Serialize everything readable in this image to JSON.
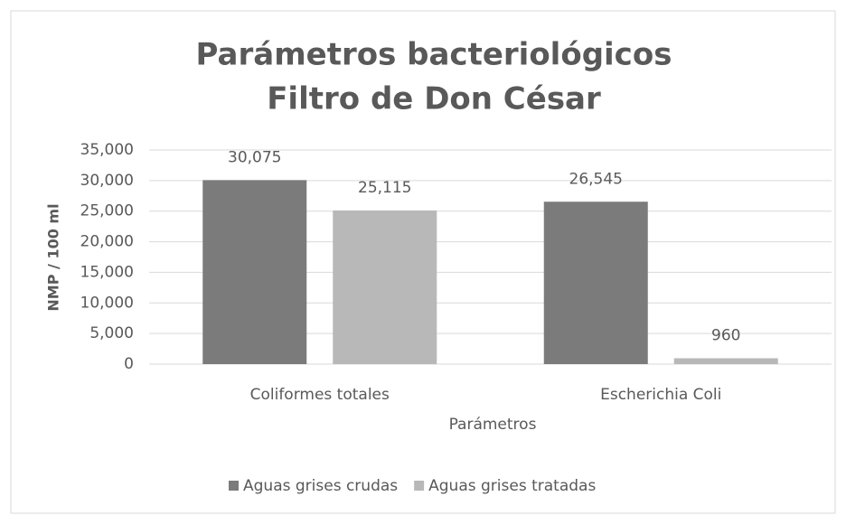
{
  "chart_data": {
    "type": "bar",
    "title": [
      "Parámetros bacteriológicos",
      "Filtro de Don César"
    ],
    "x_label": "Parámetros",
    "y_label": "NMP / 100 ml",
    "categories": [
      "Coliformes totales",
      "Escherichia Coli"
    ],
    "series": [
      {
        "name": "Aguas grises crudas",
        "color": "#7b7b7b",
        "values": [
          30075,
          26545
        ],
        "value_labels": [
          "30,075",
          "26,545"
        ]
      },
      {
        "name": "Aguas grises tratadas",
        "color": "#b8b8b8",
        "values": [
          25115,
          960
        ],
        "value_labels": [
          "25,115",
          "960"
        ]
      }
    ],
    "ylim": [
      0,
      35000
    ],
    "yticks": [
      0,
      {
        "value": 5000,
        "label": "5,000"
      },
      {
        "value": 10000,
        "label": "10,000"
      },
      {
        "value": 15000,
        "label": "15,000"
      },
      {
        "value": 20000,
        "label": "20,000"
      },
      {
        "value": 25000,
        "label": "25,000"
      },
      {
        "value": 30000,
        "label": "30,000"
      },
      {
        "value": 35000,
        "label": "35,000"
      }
    ],
    "grid": true,
    "legend": "bottom"
  }
}
